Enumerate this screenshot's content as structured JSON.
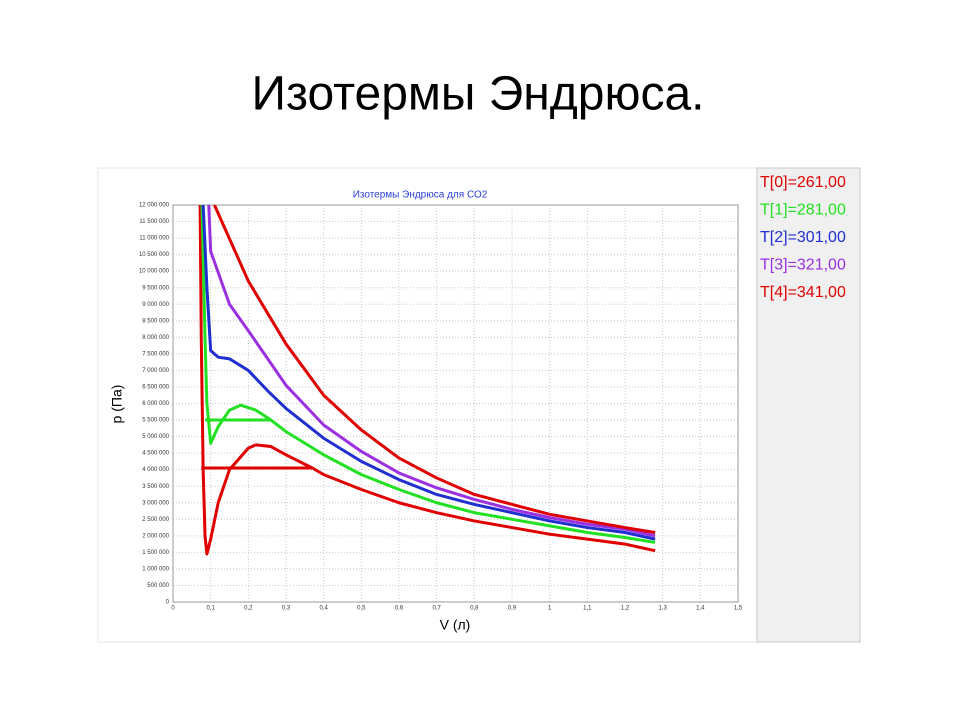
{
  "slide_title": "Изотермы Эндрюса.",
  "chart_data": {
    "type": "line",
    "title": "Изотермы Эндрюса для СО2",
    "xlabel": "V (л)",
    "ylabel": "p (Па)",
    "xlim": [
      0,
      1.5
    ],
    "xticks": [
      0,
      {
        "value": 0.1,
        "label": "0,1"
      },
      {
        "value": 0.2,
        "label": "0,2"
      },
      {
        "value": 0.3,
        "label": "0,3"
      },
      {
        "value": 0.4,
        "label": "0,4"
      },
      {
        "value": 0.5,
        "label": "0,5"
      },
      {
        "value": 0.6,
        "label": "0,6"
      },
      {
        "value": 0.7,
        "label": "0,7"
      },
      {
        "value": 0.8,
        "label": "0,8"
      },
      {
        "value": 0.9,
        "label": "0,9"
      },
      1,
      {
        "value": 1.1,
        "label": "1,1"
      },
      {
        "value": 1.2,
        "label": "1,2"
      },
      {
        "value": 1.3,
        "label": "1,3"
      },
      {
        "value": 1.4,
        "label": "1,4"
      },
      {
        "value": 1.5,
        "label": "1,5"
      }
    ],
    "ylim": [
      0,
      12000000
    ],
    "yticks": [
      0,
      {
        "value": 500000,
        "label": "500 000"
      },
      {
        "value": 1000000,
        "label": "1 000 000"
      },
      {
        "value": 1500000,
        "label": "1 500 000"
      },
      {
        "value": 2000000,
        "label": "2 000 000"
      },
      {
        "value": 2500000,
        "label": "2 500 000"
      },
      {
        "value": 3000000,
        "label": "3 000 000"
      },
      {
        "value": 3500000,
        "label": "3 500 000"
      },
      {
        "value": 4000000,
        "label": "4 000 000"
      },
      {
        "value": 4500000,
        "label": "4 500 000"
      },
      {
        "value": 5000000,
        "label": "5 000 000"
      },
      {
        "value": 5500000,
        "label": "5 500 000"
      },
      {
        "value": 6000000,
        "label": "6 000 000"
      },
      {
        "value": 6500000,
        "label": "6 500 000"
      },
      {
        "value": 7000000,
        "label": "7 000 000"
      },
      {
        "value": 7500000,
        "label": "7 500 000"
      },
      {
        "value": 8000000,
        "label": "8 000 000"
      },
      {
        "value": 8500000,
        "label": "8 500 000"
      },
      {
        "value": 9000000,
        "label": "9 000 000"
      },
      {
        "value": 9500000,
        "label": "9 500 000"
      },
      {
        "value": 10000000,
        "label": "10 000 000"
      },
      {
        "value": 10500000,
        "label": "10 500 000"
      },
      {
        "value": 11000000,
        "label": "11 000 000"
      },
      {
        "value": 11500000,
        "label": "11 500 000"
      },
      {
        "value": 12000000,
        "label": "12 000 000"
      }
    ],
    "grid": true,
    "legend": "right",
    "series": [
      {
        "name": "T[0]=261,00",
        "color": "#e00000",
        "x": [
          0.072,
          0.075,
          0.08,
          0.085,
          0.09,
          0.1,
          0.12,
          0.15,
          0.2,
          0.22,
          0.26,
          0.3,
          0.37,
          0.4,
          0.5,
          0.6,
          0.7,
          0.8,
          0.9,
          1.0,
          1.1,
          1.2,
          1.28
        ],
        "values": [
          12000000,
          8000000,
          4000000,
          2000000,
          1450000,
          1900000,
          3000000,
          4000000,
          4650000,
          4750000,
          4700000,
          4450000,
          4050000,
          3850000,
          3400000,
          3000000,
          2700000,
          2450000,
          2250000,
          2050000,
          1900000,
          1750000,
          1550000
        ]
      },
      {
        "name": "T[1]=281,00",
        "color": "#22e022",
        "x": [
          0.077,
          0.085,
          0.09,
          0.1,
          0.12,
          0.15,
          0.18,
          0.22,
          0.26,
          0.3,
          0.4,
          0.5,
          0.6,
          0.7,
          0.8,
          0.9,
          1.0,
          1.1,
          1.2,
          1.28
        ],
        "values": [
          12000000,
          8000000,
          6000000,
          4800000,
          5300000,
          5800000,
          5950000,
          5800000,
          5500000,
          5150000,
          4450000,
          3850000,
          3400000,
          3000000,
          2700000,
          2500000,
          2300000,
          2100000,
          1950000,
          1800000
        ]
      },
      {
        "name": "T[2]=301,00",
        "color": "#1f2fd0",
        "x": [
          0.08,
          0.09,
          0.1,
          0.12,
          0.15,
          0.2,
          0.25,
          0.3,
          0.4,
          0.5,
          0.6,
          0.7,
          0.8,
          0.9,
          1.0,
          1.1,
          1.2,
          1.28
        ],
        "values": [
          12000000,
          9500000,
          7600000,
          7400000,
          7350000,
          7000000,
          6400000,
          5850000,
          4950000,
          4250000,
          3700000,
          3250000,
          2950000,
          2700000,
          2450000,
          2250000,
          2100000,
          1900000
        ]
      },
      {
        "name": "T[3]=321,00",
        "color": "#9a30e0",
        "x": [
          0.095,
          0.1,
          0.15,
          0.2,
          0.3,
          0.4,
          0.5,
          0.6,
          0.7,
          0.8,
          0.9,
          1.0,
          1.1,
          1.2,
          1.28
        ],
        "values": [
          12000000,
          10600000,
          9000000,
          8200000,
          6550000,
          5350000,
          4550000,
          3900000,
          3450000,
          3100000,
          2800000,
          2550000,
          2350000,
          2200000,
          2000000
        ]
      },
      {
        "name": "T[4]=341,00",
        "color": "#e00000",
        "x": [
          0.11,
          0.2,
          0.3,
          0.4,
          0.5,
          0.6,
          0.7,
          0.8,
          0.9,
          1.0,
          1.1,
          1.2,
          1.28
        ],
        "values": [
          12000000,
          9700000,
          7800000,
          6250000,
          5200000,
          4350000,
          3750000,
          3250000,
          2950000,
          2650000,
          2450000,
          2250000,
          2100000
        ]
      }
    ],
    "horizontal_lines": [
      {
        "y": 4050000,
        "x": [
          0.075,
          0.37
        ],
        "color": "#e00000"
      },
      {
        "y": 5500000,
        "x": [
          0.085,
          0.26
        ],
        "color": "#22e022"
      }
    ]
  }
}
